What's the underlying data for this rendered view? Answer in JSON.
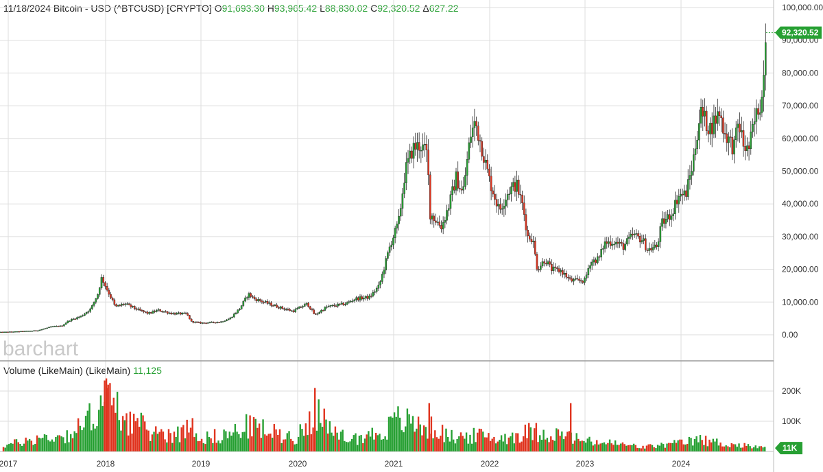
{
  "header": {
    "date": "11/18/2024",
    "title": "Bitcoin - USD (^BTCUSD) [CRYPTO]",
    "open_label": "O",
    "open": "91,693.30",
    "high_label": "H",
    "high": "93,965.42",
    "low_label": "L",
    "low": "88,830.02",
    "close_label": "C",
    "close": "92,320.52",
    "change_label": "Δ",
    "change": "627.22"
  },
  "watermark": "barchart",
  "volume_header": {
    "label": "Volume (LikeMain)  (LikeMain)",
    "value": "11,125"
  },
  "colors": {
    "up": "#27a033",
    "down": "#e0341f",
    "grid": "#dedede",
    "badge": "#27a033"
  },
  "chart_data": [
    {
      "type": "candlestick",
      "title": "11/18/2024 Bitcoin - USD (^BTCUSD) [CRYPTO]",
      "y_ticks": [
        "100,000.00",
        "90,000.00",
        "80,000.00",
        "70,000.00",
        "60,000.00",
        "50,000.00",
        "40,000.00",
        "30,000.00",
        "20,000.00",
        "10,000.00",
        "0.00"
      ],
      "ylim": [
        0,
        100000
      ],
      "last_price": 92320.52,
      "last_price_label": "92,320.52",
      "x_ticks": [
        "2017",
        "2018",
        "2019",
        "2020",
        "2021",
        "2022",
        "2023",
        "2024"
      ],
      "x_tick_years": [
        2017,
        2018,
        2019,
        2020,
        2021,
        2022,
        2023,
        2024
      ],
      "x_range": [
        2017,
        2024.99
      ],
      "grid": true,
      "close_path": [
        [
          2016.9,
          800
        ],
        [
          2017.1,
          1000
        ],
        [
          2017.3,
          1300
        ],
        [
          2017.45,
          2500
        ],
        [
          2017.55,
          2700
        ],
        [
          2017.62,
          4300
        ],
        [
          2017.75,
          5700
        ],
        [
          2017.85,
          8000
        ],
        [
          2017.92,
          12500
        ],
        [
          2017.96,
          17500
        ],
        [
          2018.02,
          13500
        ],
        [
          2018.08,
          10000
        ],
        [
          2018.1,
          8500
        ],
        [
          2018.2,
          9500
        ],
        [
          2018.35,
          7500
        ],
        [
          2018.45,
          6500
        ],
        [
          2018.55,
          7500
        ],
        [
          2018.7,
          6500
        ],
        [
          2018.85,
          6400
        ],
        [
          2018.9,
          4000
        ],
        [
          2019.0,
          3600
        ],
        [
          2019.2,
          3900
        ],
        [
          2019.3,
          5000
        ],
        [
          2019.4,
          8000
        ],
        [
          2019.49,
          12500
        ],
        [
          2019.55,
          11000
        ],
        [
          2019.7,
          9500
        ],
        [
          2019.8,
          8500
        ],
        [
          2019.95,
          7200
        ],
        [
          2020.1,
          9500
        ],
        [
          2020.18,
          6000
        ],
        [
          2020.3,
          8500
        ],
        [
          2020.5,
          9500
        ],
        [
          2020.6,
          11000
        ],
        [
          2020.75,
          11500
        ],
        [
          2020.85,
          15000
        ],
        [
          2020.97,
          28000
        ],
        [
          2021.05,
          34000
        ],
        [
          2021.12,
          50000
        ],
        [
          2021.2,
          57000
        ],
        [
          2021.28,
          58000
        ],
        [
          2021.35,
          55000
        ],
        [
          2021.38,
          37000
        ],
        [
          2021.5,
          33000
        ],
        [
          2021.58,
          40000
        ],
        [
          2021.65,
          48000
        ],
        [
          2021.72,
          43000
        ],
        [
          2021.8,
          61000
        ],
        [
          2021.85,
          65000
        ],
        [
          2021.92,
          57000
        ],
        [
          2022.0,
          47000
        ],
        [
          2022.1,
          38000
        ],
        [
          2022.2,
          44000
        ],
        [
          2022.28,
          46000
        ],
        [
          2022.35,
          39000
        ],
        [
          2022.4,
          30000
        ],
        [
          2022.45,
          29500
        ],
        [
          2022.5,
          20000
        ],
        [
          2022.58,
          23000
        ],
        [
          2022.65,
          20000
        ],
        [
          2022.75,
          19500
        ],
        [
          2022.85,
          16500
        ],
        [
          2023.0,
          16600
        ],
        [
          2023.05,
          22000
        ],
        [
          2023.15,
          23500
        ],
        [
          2023.2,
          28000
        ],
        [
          2023.3,
          28500
        ],
        [
          2023.4,
          27000
        ],
        [
          2023.5,
          30500
        ],
        [
          2023.6,
          29000
        ],
        [
          2023.65,
          26000
        ],
        [
          2023.75,
          27000
        ],
        [
          2023.8,
          34000
        ],
        [
          2023.9,
          37000
        ],
        [
          2023.97,
          42500
        ],
        [
          2024.05,
          43000
        ],
        [
          2024.12,
          52000
        ],
        [
          2024.2,
          68000
        ],
        [
          2024.3,
          63000
        ],
        [
          2024.4,
          68000
        ],
        [
          2024.45,
          62000
        ],
        [
          2024.55,
          57000
        ],
        [
          2024.6,
          65000
        ],
        [
          2024.65,
          58000
        ],
        [
          2024.7,
          56000
        ],
        [
          2024.75,
          63000
        ],
        [
          2024.8,
          69000
        ],
        [
          2024.85,
          73000
        ],
        [
          2024.87,
          90000
        ],
        [
          2024.885,
          92320
        ]
      ]
    },
    {
      "type": "bar",
      "title": "Volume (LikeMain)  (LikeMain)",
      "y_ticks": [
        "200K",
        "100K"
      ],
      "ylim": [
        0,
        250000
      ],
      "last_value_label": "11K",
      "x_ticks": [
        "2017",
        "2018",
        "2019",
        "2020",
        "2021",
        "2022",
        "2023",
        "2024"
      ],
      "volume_path": [
        [
          2016.95,
          20000
        ],
        [
          2017.3,
          45000
        ],
        [
          2017.6,
          55000
        ],
        [
          2017.8,
          95000
        ],
        [
          2017.92,
          165000
        ],
        [
          2018.0,
          185000
        ],
        [
          2018.2,
          120000
        ],
        [
          2018.5,
          65000
        ],
        [
          2018.8,
          60000
        ],
        [
          2018.9,
          110000
        ],
        [
          2019.0,
          45000
        ],
        [
          2019.3,
          60000
        ],
        [
          2019.5,
          90000
        ],
        [
          2019.8,
          60000
        ],
        [
          2020.0,
          50000
        ],
        [
          2020.2,
          150000
        ],
        [
          2020.35,
          60000
        ],
        [
          2020.6,
          45000
        ],
        [
          2020.9,
          70000
        ],
        [
          2021.05,
          110000
        ],
        [
          2021.4,
          80000
        ],
        [
          2021.6,
          50000
        ],
        [
          2021.9,
          55000
        ],
        [
          2022.1,
          45000
        ],
        [
          2022.45,
          70000
        ],
        [
          2022.8,
          55000
        ],
        [
          2023.0,
          35000
        ],
        [
          2023.3,
          28000
        ],
        [
          2023.6,
          15000
        ],
        [
          2023.9,
          25000
        ],
        [
          2024.2,
          40000
        ],
        [
          2024.5,
          25000
        ],
        [
          2024.8,
          15000
        ],
        [
          2024.885,
          11000
        ]
      ],
      "spikes": [
        [
          2017.99,
          235000
        ],
        [
          2018.01,
          210000
        ],
        [
          2020.18,
          210000
        ],
        [
          2022.85,
          160000
        ],
        [
          2021.37,
          160000
        ]
      ]
    }
  ]
}
